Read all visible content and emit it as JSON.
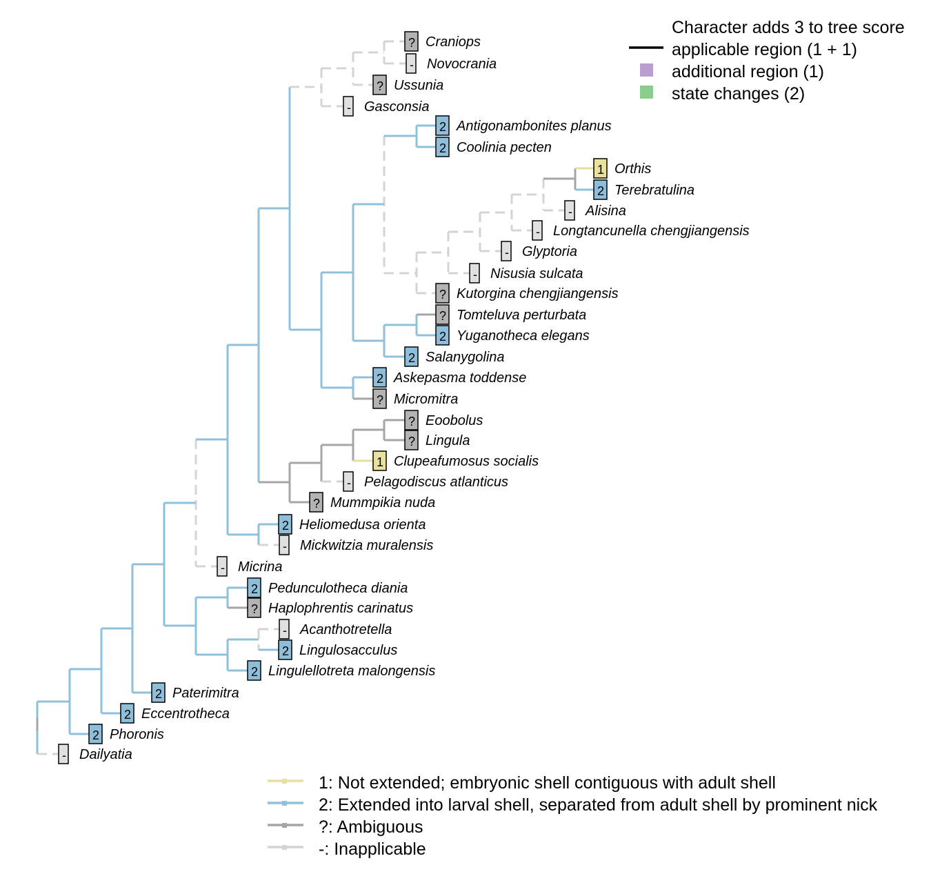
{
  "colors": {
    "1": "#e5e0a0",
    "2": "#8fc1dc",
    "?": "#a6a6a6",
    "-": "#d4d4d4",
    "score_line": "#000000",
    "additional_region": "#b89fcf",
    "state_changes": "#8ccc8c"
  },
  "box_fill": {
    "1": "#e8e29e",
    "2": "#8fbedb",
    "?": "#b3b3b3",
    "-": "#e0e0e0"
  },
  "score_legend": {
    "title": "Character adds 3 to tree score",
    "applicable": "applicable region (1 + 1)",
    "additional": "additional region (1)",
    "changes": "state changes (2)"
  },
  "state_legend": [
    {
      "symbol": "1",
      "label": "1: Not extended; embryonic shell contiguous with adult shell"
    },
    {
      "symbol": "2",
      "label": "2: Extended into larval shell, separated from adult shell by prominent nick"
    },
    {
      "symbol": "?",
      "label": "?: Ambiguous"
    },
    {
      "symbol": "-",
      "label": "-: Inapplicable"
    }
  ],
  "tips": [
    {
      "name": "Craniops",
      "state": "?"
    },
    {
      "name": "Novocrania",
      "state": "-"
    },
    {
      "name": "Ussunia",
      "state": "?"
    },
    {
      "name": "Gasconsia",
      "state": "-"
    },
    {
      "name": "Antigonambonites planus",
      "state": "2"
    },
    {
      "name": "Coolinia pecten",
      "state": "2"
    },
    {
      "name": "Orthis",
      "state": "1"
    },
    {
      "name": "Terebratulina",
      "state": "2"
    },
    {
      "name": "Alisina",
      "state": "-"
    },
    {
      "name": "Longtancunella chengjiangensis",
      "state": "-"
    },
    {
      "name": "Glyptoria",
      "state": "-"
    },
    {
      "name": "Nisusia sulcata",
      "state": "-"
    },
    {
      "name": "Kutorgina chengjiangensis",
      "state": "?"
    },
    {
      "name": "Tomteluva perturbata",
      "state": "?"
    },
    {
      "name": "Yuganotheca elegans",
      "state": "2"
    },
    {
      "name": "Salanygolina",
      "state": "2"
    },
    {
      "name": "Askepasma toddense",
      "state": "2"
    },
    {
      "name": "Micromitra",
      "state": "?"
    },
    {
      "name": "Eoobolus",
      "state": "?"
    },
    {
      "name": "Lingula",
      "state": "?"
    },
    {
      "name": "Clupeafumosus socialis",
      "state": "1"
    },
    {
      "name": "Pelagodiscus atlanticus",
      "state": "-"
    },
    {
      "name": "Mummpikia nuda",
      "state": "?"
    },
    {
      "name": "Heliomedusa orienta",
      "state": "2"
    },
    {
      "name": "Mickwitzia muralensis",
      "state": "-"
    },
    {
      "name": "Micrina",
      "state": "-"
    },
    {
      "name": "Pedunculotheca diania",
      "state": "2"
    },
    {
      "name": "Haplophrentis carinatus",
      "state": "?"
    },
    {
      "name": "Acanthotretella",
      "state": "-"
    },
    {
      "name": "Lingulosacculus",
      "state": "2"
    },
    {
      "name": "Lingulellotreta malongensis",
      "state": "2"
    },
    {
      "name": "Paterimitra",
      "state": "2"
    },
    {
      "name": "Eccentrotheca",
      "state": "2"
    },
    {
      "name": "Phoronis",
      "state": "2"
    },
    {
      "name": "Dailyatia",
      "state": "-"
    }
  ]
}
